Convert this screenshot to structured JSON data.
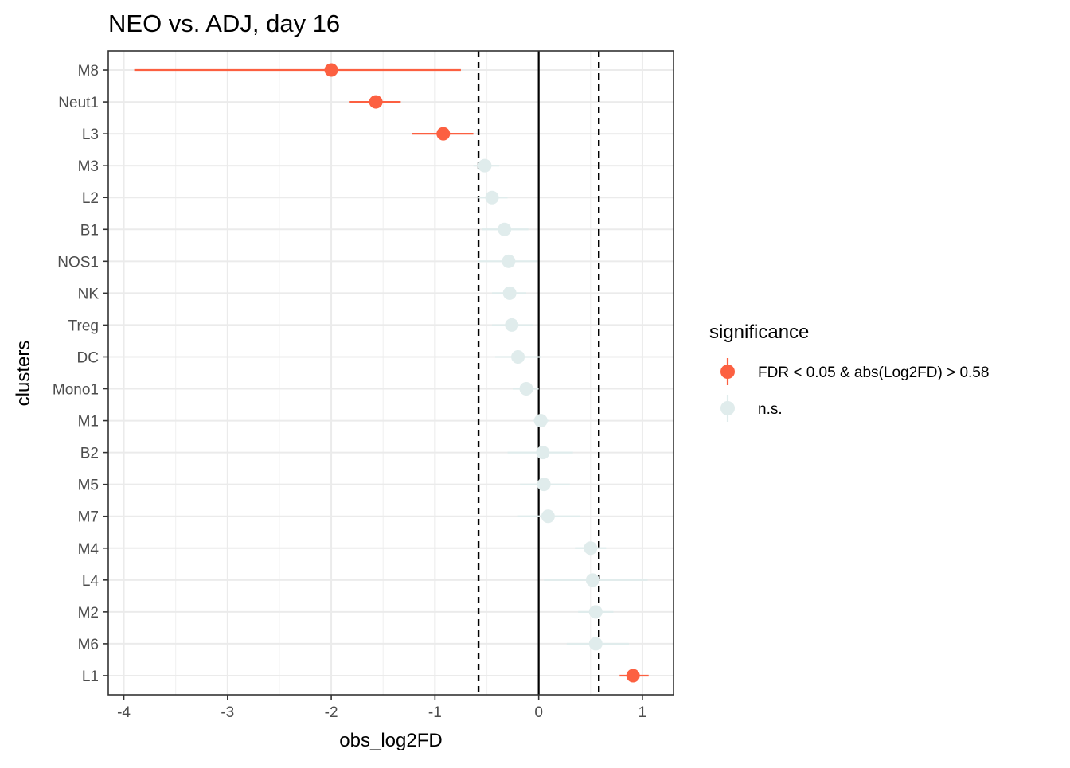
{
  "chart_data": {
    "type": "scatter",
    "title": "NEO vs. ADJ, day 16",
    "xlabel": "obs_log2FD",
    "ylabel": "clusters",
    "xlim": [
      -4.15,
      1.3
    ],
    "xticks": [
      -4,
      -3,
      -2,
      -1,
      0,
      1
    ],
    "xtick_labels": [
      "-4",
      "-3",
      "-2",
      "-1",
      "0",
      "1"
    ],
    "grid": true,
    "categories": [
      "M8",
      "Neut1",
      "L3",
      "M3",
      "L2",
      "B1",
      "NOS1",
      "NK",
      "Treg",
      "DC",
      "Mono1",
      "M1",
      "B2",
      "M5",
      "M7",
      "M4",
      "L4",
      "M2",
      "M6",
      "L1"
    ],
    "reference_lines": {
      "solid": [
        0
      ],
      "dashed": [
        -0.58,
        0.58
      ]
    },
    "legend": {
      "title": "significance",
      "position": "right",
      "entries": [
        {
          "key": "sig",
          "label": "FDR < 0.05 & abs(Log2FD) > 0.58",
          "color": "#fc6041"
        },
        {
          "key": "ns",
          "label": "n.s.",
          "color": "#e0ecec"
        }
      ]
    },
    "points": [
      {
        "cluster": "M8",
        "x": -2.0,
        "lo": -3.9,
        "hi": -0.75,
        "group": "sig"
      },
      {
        "cluster": "Neut1",
        "x": -1.57,
        "lo": -1.83,
        "hi": -1.33,
        "group": "sig"
      },
      {
        "cluster": "L3",
        "x": -0.92,
        "lo": -1.22,
        "hi": -0.63,
        "group": "sig"
      },
      {
        "cluster": "M3",
        "x": -0.52,
        "lo": -0.63,
        "hi": -0.38,
        "group": "ns"
      },
      {
        "cluster": "L2",
        "x": -0.45,
        "lo": -0.58,
        "hi": -0.3,
        "group": "ns"
      },
      {
        "cluster": "B1",
        "x": -0.33,
        "lo": -0.55,
        "hi": -0.1,
        "group": "ns"
      },
      {
        "cluster": "NOS1",
        "x": -0.29,
        "lo": -0.58,
        "hi": -0.02,
        "group": "ns"
      },
      {
        "cluster": "NK",
        "x": -0.28,
        "lo": -0.45,
        "hi": -0.12,
        "group": "ns"
      },
      {
        "cluster": "Treg",
        "x": -0.26,
        "lo": -0.45,
        "hi": -0.05,
        "group": "ns"
      },
      {
        "cluster": "DC",
        "x": -0.2,
        "lo": -0.42,
        "hi": 0.02,
        "group": "ns"
      },
      {
        "cluster": "Mono1",
        "x": -0.12,
        "lo": -0.25,
        "hi": 0.0,
        "group": "ns"
      },
      {
        "cluster": "M1",
        "x": 0.02,
        "lo": -0.05,
        "hi": 0.1,
        "group": "ns"
      },
      {
        "cluster": "B2",
        "x": 0.04,
        "lo": -0.3,
        "hi": 0.33,
        "group": "ns"
      },
      {
        "cluster": "M5",
        "x": 0.05,
        "lo": -0.18,
        "hi": 0.3,
        "group": "ns"
      },
      {
        "cluster": "M7",
        "x": 0.09,
        "lo": -0.2,
        "hi": 0.4,
        "group": "ns"
      },
      {
        "cluster": "M4",
        "x": 0.5,
        "lo": 0.35,
        "hi": 0.65,
        "group": "ns"
      },
      {
        "cluster": "L4",
        "x": 0.52,
        "lo": 0.05,
        "hi": 1.05,
        "group": "ns"
      },
      {
        "cluster": "M2",
        "x": 0.55,
        "lo": 0.38,
        "hi": 0.72,
        "group": "ns"
      },
      {
        "cluster": "M6",
        "x": 0.55,
        "lo": 0.27,
        "hi": 0.87,
        "group": "ns"
      },
      {
        "cluster": "L1",
        "x": 0.91,
        "lo": 0.78,
        "hi": 1.06,
        "group": "sig"
      }
    ]
  }
}
